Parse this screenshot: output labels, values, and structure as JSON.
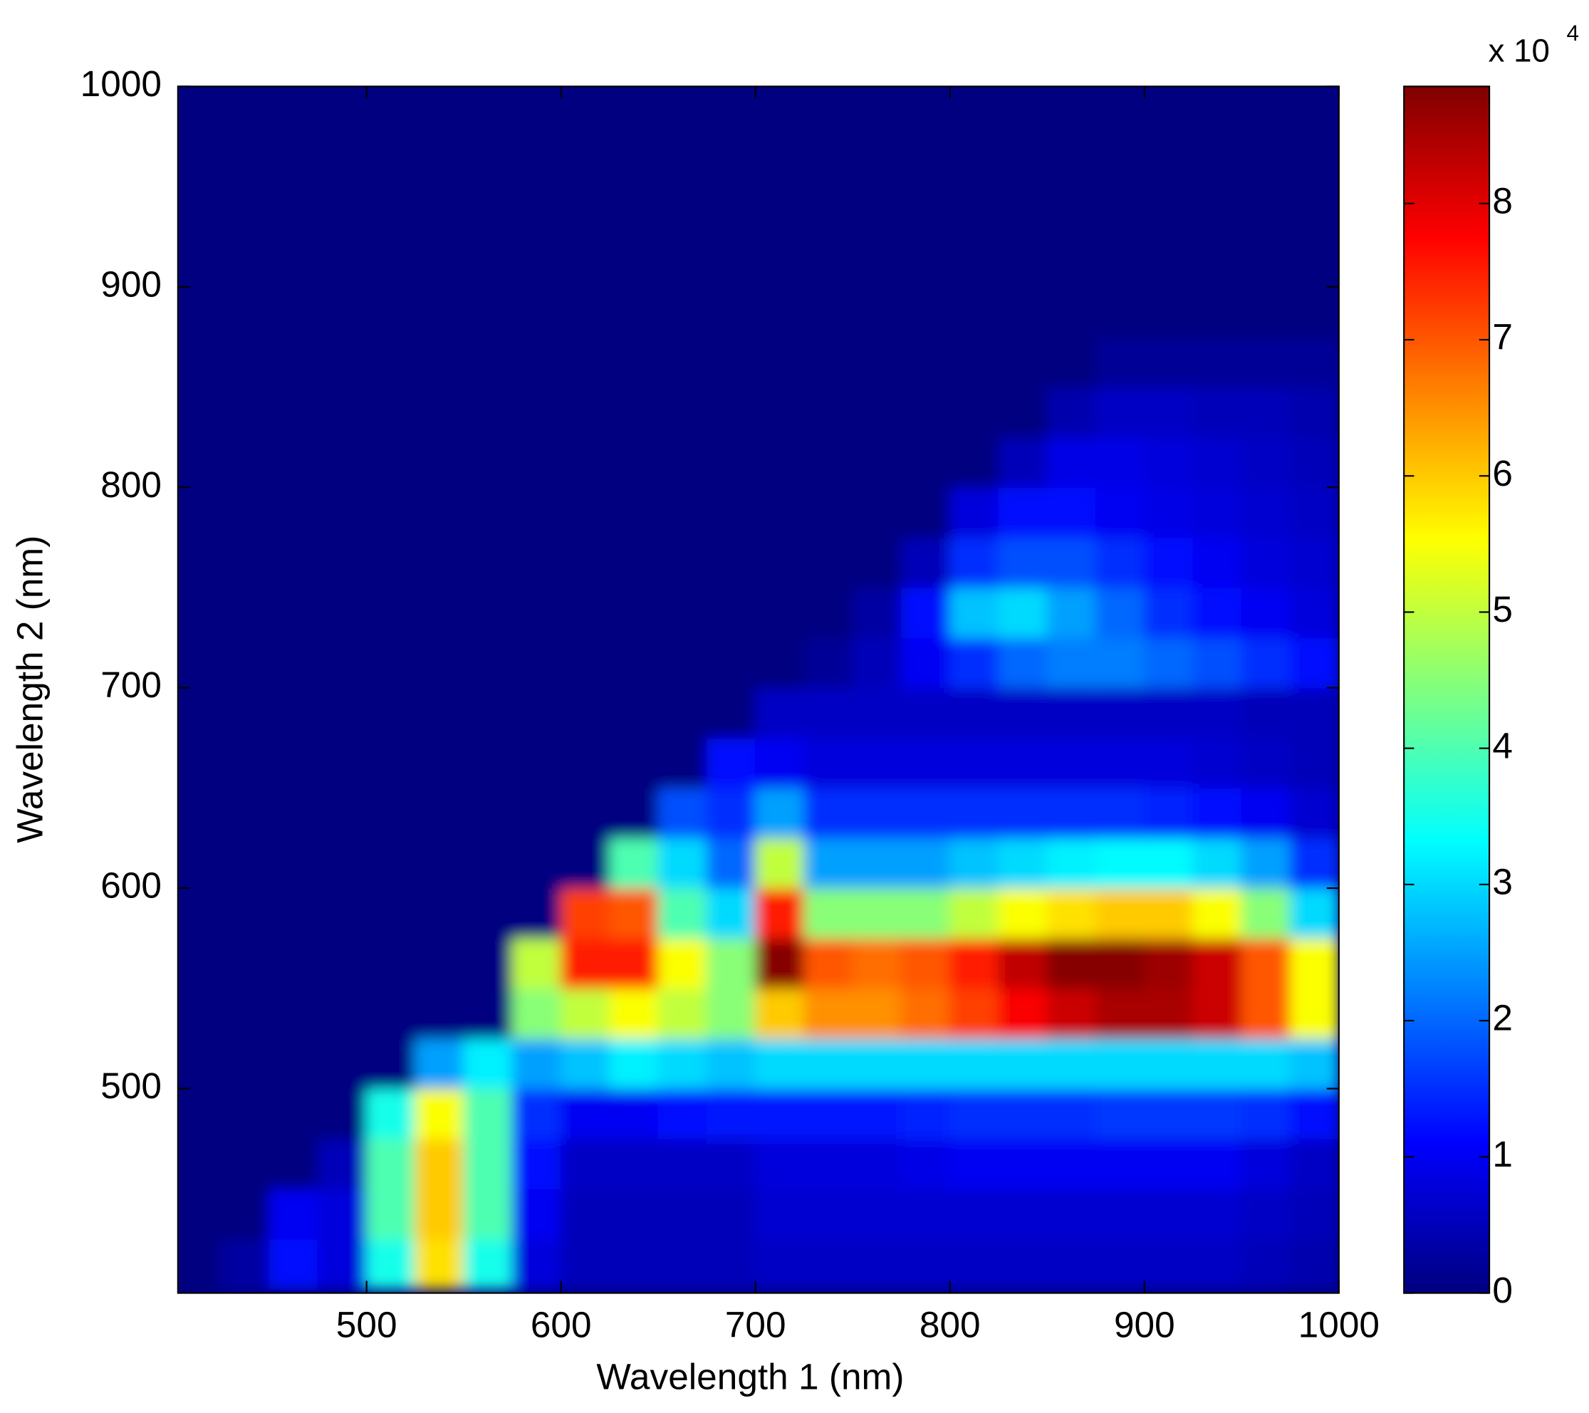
{
  "chart_data": {
    "type": "heatmap",
    "x_label": "Wavelength 1 (nm)",
    "y_label": "Wavelength 2 (nm)",
    "colorbar_label": "x 10",
    "colorbar_exponent": "4",
    "xlim": [
      403,
      1000
    ],
    "ylim": [
      398,
      1000
    ],
    "xticks": [
      500,
      600,
      700,
      800,
      900,
      1000
    ],
    "yticks": [
      500,
      600,
      700,
      800,
      900,
      1000
    ],
    "clim": [
      0,
      8.86
    ],
    "cticks": [
      0,
      1,
      2,
      3,
      4,
      5,
      6,
      7,
      8
    ],
    "colormap": "jet",
    "x": [
      412.5,
      437.5,
      462.5,
      487.5,
      512.5,
      537.5,
      562.5,
      587.5,
      612.5,
      637.5,
      662.5,
      687.5,
      712.5,
      737.5,
      762.5,
      787.5,
      812.5,
      837.5,
      862.5,
      887.5,
      912.5,
      937.5,
      962.5,
      987.5
    ],
    "y": [
      412.5,
      437.5,
      462.5,
      487.5,
      512.5,
      537.5,
      562.5,
      587.5,
      612.5,
      637.5,
      662.5,
      687.5,
      712.5,
      737.5,
      762.5,
      787.5,
      812.5,
      837.5,
      862.5,
      887.5,
      912.5,
      937.5,
      962.5,
      987.5
    ],
    "z": [
      [
        0,
        0.3,
        1.2,
        0.8,
        3.5,
        5.8,
        3.5,
        0.8,
        0.5,
        0.5,
        0.5,
        0.5,
        0.6,
        0.6,
        0.6,
        0.6,
        0.6,
        0.6,
        0.6,
        0.6,
        0.6,
        0.6,
        0.5,
        0.4
      ],
      [
        0,
        0,
        1,
        0.8,
        4,
        6,
        4,
        1,
        0.5,
        0.5,
        0.5,
        0.5,
        0.7,
        0.7,
        0.7,
        0.7,
        0.7,
        0.7,
        0.7,
        0.7,
        0.7,
        0.7,
        0.6,
        0.5
      ],
      [
        0,
        0,
        0,
        0.5,
        4,
        6,
        4,
        1.2,
        0.6,
        0.6,
        0.6,
        0.6,
        0.8,
        0.8,
        0.8,
        0.9,
        1,
        1,
        1,
        1,
        1,
        1,
        0.8,
        0.6
      ],
      [
        0,
        0,
        0,
        0,
        3.5,
        5.5,
        4,
        1.5,
        1,
        1,
        1.2,
        1.3,
        1.3,
        1.3,
        1.3,
        1.4,
        1.5,
        1.5,
        1.5,
        1.6,
        1.6,
        1.6,
        1.5,
        1.2
      ],
      [
        0,
        0,
        0,
        0,
        0,
        2.5,
        3.2,
        2.5,
        2.8,
        3.2,
        3,
        2.8,
        3,
        3,
        3,
        3,
        3,
        3,
        3,
        3,
        3,
        3,
        3,
        2.8
      ],
      [
        0,
        0,
        0,
        0,
        0,
        0,
        0,
        4.5,
        5,
        5.5,
        5,
        4.5,
        6,
        6.5,
        6.5,
        6.8,
        7.2,
        7.8,
        8.2,
        8.5,
        8.5,
        8.2,
        7,
        5.5
      ],
      [
        0,
        0,
        0,
        0,
        0,
        0,
        0,
        5,
        7.5,
        7.5,
        5.5,
        4.5,
        8.8,
        7,
        6.8,
        7,
        7.5,
        8.3,
        8.8,
        8.8,
        8.6,
        8.2,
        7,
        5.5
      ],
      [
        0,
        0,
        0,
        0,
        0,
        0,
        0,
        0,
        7.2,
        7,
        4,
        3,
        7.5,
        4.5,
        4.5,
        4.5,
        5,
        5.5,
        5.8,
        6,
        6,
        5.5,
        4.5,
        3
      ],
      [
        0,
        0,
        0,
        0,
        0,
        0,
        0,
        0,
        0,
        4,
        3,
        2,
        5,
        2.5,
        2.5,
        2.5,
        2.8,
        3,
        3.2,
        3.3,
        3.3,
        3,
        2.5,
        1.5
      ],
      [
        0,
        0,
        0,
        0,
        0,
        0,
        0,
        0,
        0,
        0,
        1.8,
        1.5,
        2.5,
        1.5,
        1.5,
        1.5,
        1.5,
        1.5,
        1.5,
        1.5,
        1.4,
        1.2,
        1,
        0.7
      ],
      [
        0,
        0,
        0,
        0,
        0,
        0,
        0,
        0,
        0,
        0,
        0,
        1.2,
        1,
        0.8,
        0.8,
        0.8,
        0.8,
        0.8,
        0.8,
        0.8,
        0.8,
        0.7,
        0.6,
        0.5
      ],
      [
        0,
        0,
        0,
        0,
        0,
        0,
        0,
        0,
        0,
        0,
        0,
        0,
        0.6,
        0.6,
        0.6,
        0.6,
        0.6,
        0.6,
        0.6,
        0.6,
        0.6,
        0.6,
        0.5,
        0.5
      ],
      [
        0,
        0,
        0,
        0,
        0,
        0,
        0,
        0,
        0,
        0,
        0,
        0,
        0,
        0.2,
        0.5,
        1,
        1.5,
        2,
        2.2,
        2.2,
        2,
        1.8,
        1.5,
        1.2
      ],
      [
        0,
        0,
        0,
        0,
        0,
        0,
        0,
        0,
        0,
        0,
        0,
        0,
        0,
        0,
        0.3,
        1.2,
        2.8,
        3,
        2.5,
        2,
        1.5,
        1.2,
        1,
        0.8
      ],
      [
        0,
        0,
        0,
        0,
        0,
        0,
        0,
        0,
        0,
        0,
        0,
        0,
        0,
        0,
        0,
        0.5,
        1.5,
        1.8,
        1.8,
        1.5,
        1.2,
        1,
        0.8,
        0.7
      ],
      [
        0,
        0,
        0,
        0,
        0,
        0,
        0,
        0,
        0,
        0,
        0,
        0,
        0,
        0,
        0,
        0,
        0.8,
        1.2,
        1.2,
        1,
        0.9,
        0.8,
        0.7,
        0.6
      ],
      [
        0,
        0,
        0,
        0,
        0,
        0,
        0,
        0,
        0,
        0,
        0,
        0,
        0,
        0,
        0,
        0,
        0,
        0.5,
        0.9,
        0.9,
        0.8,
        0.7,
        0.6,
        0.5
      ],
      [
        0,
        0,
        0,
        0,
        0,
        0,
        0,
        0,
        0,
        0,
        0,
        0,
        0,
        0,
        0,
        0,
        0,
        0,
        0.4,
        0.6,
        0.6,
        0.5,
        0.5,
        0.4
      ],
      [
        0,
        0,
        0,
        0,
        0,
        0,
        0,
        0,
        0,
        0,
        0,
        0,
        0,
        0,
        0,
        0,
        0,
        0,
        0,
        0.2,
        0.2,
        0.2,
        0.2,
        0.2
      ],
      [
        0,
        0,
        0,
        0,
        0,
        0,
        0,
        0,
        0,
        0,
        0,
        0,
        0,
        0,
        0,
        0,
        0,
        0,
        0,
        0,
        0,
        0,
        0,
        0
      ],
      [
        0,
        0,
        0,
        0,
        0,
        0,
        0,
        0,
        0,
        0,
        0,
        0,
        0,
        0,
        0,
        0,
        0,
        0,
        0,
        0,
        0,
        0,
        0,
        0
      ],
      [
        0,
        0,
        0,
        0,
        0,
        0,
        0,
        0,
        0,
        0,
        0,
        0,
        0,
        0,
        0,
        0,
        0,
        0,
        0,
        0,
        0,
        0,
        0,
        0
      ],
      [
        0,
        0,
        0,
        0,
        0,
        0,
        0,
        0,
        0,
        0,
        0,
        0,
        0,
        0,
        0,
        0,
        0,
        0,
        0,
        0,
        0,
        0,
        0,
        0
      ],
      [
        0,
        0,
        0,
        0,
        0,
        0,
        0,
        0,
        0,
        0,
        0,
        0,
        0,
        0,
        0,
        0,
        0,
        0,
        0,
        0,
        0,
        0,
        0,
        0
      ]
    ]
  }
}
